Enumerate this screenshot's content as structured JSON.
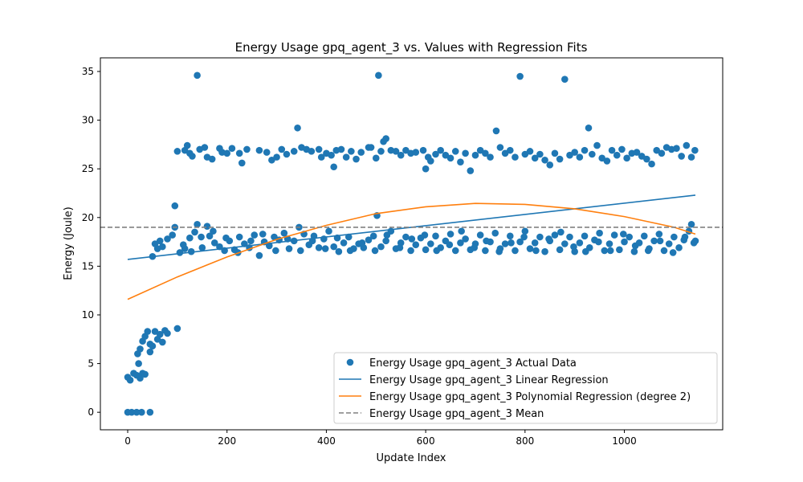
{
  "chart_data": {
    "type": "scatter",
    "title": "Energy Usage gpq_agent_3 vs. Values with Regression Fits",
    "xlabel": "Update Index",
    "ylabel": "Energy (Joule)",
    "xlim": [
      -55,
      1198
    ],
    "ylim": [
      -1.8,
      36.4
    ],
    "xticks": [
      0,
      200,
      400,
      600,
      800,
      1000
    ],
    "yticks": [
      0,
      5,
      10,
      15,
      20,
      25,
      30,
      35
    ],
    "grid": false,
    "legend_position": "lower right",
    "series": [
      {
        "name": "Energy Usage gpq_agent_3 Actual Data",
        "kind": "scatter",
        "color": "#1f77b4",
        "points": [
          [
            0,
            0
          ],
          [
            8,
            0
          ],
          [
            18,
            0
          ],
          [
            28,
            0
          ],
          [
            45,
            0
          ],
          [
            0,
            3.6
          ],
          [
            5,
            3.3
          ],
          [
            12,
            4.0
          ],
          [
            18,
            3.8
          ],
          [
            25,
            3.5
          ],
          [
            30,
            4.0
          ],
          [
            35,
            3.9
          ],
          [
            20,
            6.0
          ],
          [
            25,
            6.5
          ],
          [
            30,
            7.3
          ],
          [
            35,
            7.8
          ],
          [
            40,
            8.3
          ],
          [
            45,
            7.0
          ],
          [
            50,
            6.8
          ],
          [
            55,
            8.3
          ],
          [
            60,
            7.5
          ],
          [
            65,
            8.0
          ],
          [
            70,
            7.2
          ],
          [
            75,
            8.4
          ],
          [
            80,
            8.1
          ],
          [
            100,
            8.6
          ],
          [
            22,
            5.0
          ],
          [
            45,
            6.2
          ],
          [
            95,
            21.2
          ],
          [
            50,
            16.0
          ],
          [
            55,
            17.3
          ],
          [
            60,
            16.8
          ],
          [
            65,
            17.6
          ],
          [
            70,
            17.0
          ],
          [
            80,
            17.8
          ],
          [
            90,
            18.2
          ],
          [
            95,
            19.0
          ],
          [
            100,
            26.8
          ],
          [
            115,
            26.9
          ],
          [
            120,
            27.4
          ],
          [
            125,
            26.6
          ],
          [
            130,
            26.3
          ],
          [
            140,
            34.6
          ],
          [
            145,
            27.0
          ],
          [
            155,
            27.2
          ],
          [
            160,
            26.2
          ],
          [
            170,
            26.0
          ],
          [
            185,
            27.1
          ],
          [
            190,
            26.7
          ],
          [
            200,
            26.6
          ],
          [
            210,
            27.1
          ],
          [
            225,
            26.6
          ],
          [
            230,
            25.6
          ],
          [
            240,
            27.0
          ],
          [
            265,
            26.9
          ],
          [
            280,
            26.7
          ],
          [
            290,
            25.9
          ],
          [
            300,
            26.2
          ],
          [
            310,
            27.0
          ],
          [
            320,
            26.5
          ],
          [
            335,
            26.8
          ],
          [
            342,
            29.2
          ],
          [
            350,
            27.2
          ],
          [
            360,
            27.0
          ],
          [
            370,
            26.8
          ],
          [
            385,
            27.0
          ],
          [
            390,
            26.2
          ],
          [
            400,
            26.6
          ],
          [
            410,
            26.4
          ],
          [
            415,
            25.2
          ],
          [
            420,
            26.9
          ],
          [
            430,
            27.0
          ],
          [
            440,
            26.2
          ],
          [
            450,
            26.8
          ],
          [
            460,
            26.0
          ],
          [
            470,
            26.7
          ],
          [
            485,
            27.2
          ],
          [
            490,
            27.2
          ],
          [
            500,
            26.1
          ],
          [
            505,
            34.6
          ],
          [
            510,
            26.8
          ],
          [
            515,
            27.8
          ],
          [
            520,
            28.1
          ],
          [
            530,
            26.9
          ],
          [
            540,
            26.8
          ],
          [
            550,
            26.4
          ],
          [
            560,
            26.9
          ],
          [
            570,
            26.6
          ],
          [
            580,
            26.7
          ],
          [
            595,
            26.9
          ],
          [
            600,
            25.0
          ],
          [
            605,
            26.2
          ],
          [
            610,
            25.8
          ],
          [
            620,
            26.5
          ],
          [
            630,
            26.9
          ],
          [
            640,
            26.4
          ],
          [
            650,
            26.1
          ],
          [
            660,
            26.8
          ],
          [
            670,
            25.7
          ],
          [
            680,
            26.6
          ],
          [
            690,
            24.8
          ],
          [
            700,
            26.4
          ],
          [
            710,
            26.9
          ],
          [
            720,
            26.6
          ],
          [
            730,
            26.2
          ],
          [
            742,
            28.9
          ],
          [
            750,
            27.2
          ],
          [
            760,
            26.6
          ],
          [
            770,
            26.9
          ],
          [
            780,
            26.2
          ],
          [
            790,
            34.5
          ],
          [
            800,
            26.5
          ],
          [
            810,
            26.8
          ],
          [
            820,
            26.1
          ],
          [
            830,
            26.5
          ],
          [
            840,
            25.9
          ],
          [
            850,
            25.4
          ],
          [
            860,
            26.6
          ],
          [
            870,
            26.0
          ],
          [
            880,
            34.2
          ],
          [
            890,
            26.4
          ],
          [
            900,
            26.7
          ],
          [
            910,
            26.2
          ],
          [
            920,
            26.9
          ],
          [
            928,
            29.2
          ],
          [
            935,
            26.5
          ],
          [
            945,
            27.4
          ],
          [
            955,
            26.1
          ],
          [
            965,
            25.8
          ],
          [
            975,
            26.9
          ],
          [
            985,
            26.4
          ],
          [
            995,
            27.0
          ],
          [
            1005,
            26.1
          ],
          [
            1015,
            26.6
          ],
          [
            1025,
            26.7
          ],
          [
            1035,
            26.3
          ],
          [
            1045,
            26.0
          ],
          [
            1055,
            25.5
          ],
          [
            1065,
            26.9
          ],
          [
            1075,
            26.6
          ],
          [
            1085,
            27.2
          ],
          [
            1095,
            27.0
          ],
          [
            1105,
            27.1
          ],
          [
            1115,
            26.3
          ],
          [
            1125,
            27.4
          ],
          [
            1135,
            26.2
          ],
          [
            1142,
            26.9
          ],
          [
            105,
            16.4
          ],
          [
            115,
            16.8
          ],
          [
            125,
            17.9
          ],
          [
            135,
            18.5
          ],
          [
            140,
            19.3
          ],
          [
            150,
            16.9
          ],
          [
            160,
            19.1
          ],
          [
            165,
            18.1
          ],
          [
            175,
            17.4
          ],
          [
            185,
            17.0
          ],
          [
            195,
            16.6
          ],
          [
            205,
            17.6
          ],
          [
            215,
            16.7
          ],
          [
            225,
            18.0
          ],
          [
            235,
            17.3
          ],
          [
            245,
            16.9
          ],
          [
            255,
            18.2
          ],
          [
            265,
            16.1
          ],
          [
            275,
            17.5
          ],
          [
            285,
            17.1
          ],
          [
            295,
            18.0
          ],
          [
            305,
            17.7
          ],
          [
            315,
            18.4
          ],
          [
            325,
            16.8
          ],
          [
            335,
            17.6
          ],
          [
            345,
            19.0
          ],
          [
            355,
            18.3
          ],
          [
            365,
            17.2
          ],
          [
            375,
            18.1
          ],
          [
            385,
            16.9
          ],
          [
            395,
            17.8
          ],
          [
            405,
            18.6
          ],
          [
            415,
            17.0
          ],
          [
            425,
            16.5
          ],
          [
            435,
            17.4
          ],
          [
            445,
            18.0
          ],
          [
            455,
            16.8
          ],
          [
            465,
            17.3
          ],
          [
            475,
            16.9
          ],
          [
            485,
            17.7
          ],
          [
            495,
            18.1
          ],
          [
            502,
            20.2
          ],
          [
            510,
            17.0
          ],
          [
            520,
            17.6
          ],
          [
            530,
            18.6
          ],
          [
            540,
            16.8
          ],
          [
            550,
            17.4
          ],
          [
            560,
            18.0
          ],
          [
            570,
            16.6
          ],
          [
            580,
            17.2
          ],
          [
            590,
            17.9
          ],
          [
            600,
            16.7
          ],
          [
            610,
            17.3
          ],
          [
            620,
            18.1
          ],
          [
            630,
            16.9
          ],
          [
            640,
            17.6
          ],
          [
            650,
            18.3
          ],
          [
            660,
            16.6
          ],
          [
            670,
            17.4
          ],
          [
            680,
            17.8
          ],
          [
            690,
            16.7
          ],
          [
            700,
            17.3
          ],
          [
            710,
            18.2
          ],
          [
            720,
            16.6
          ],
          [
            730,
            17.5
          ],
          [
            740,
            18.4
          ],
          [
            750,
            16.8
          ],
          [
            760,
            17.3
          ],
          [
            770,
            18.1
          ],
          [
            780,
            16.6
          ],
          [
            790,
            17.5
          ],
          [
            800,
            18.6
          ],
          [
            810,
            16.8
          ],
          [
            820,
            17.4
          ],
          [
            830,
            18.0
          ],
          [
            840,
            16.5
          ],
          [
            850,
            17.6
          ],
          [
            860,
            18.2
          ],
          [
            870,
            16.7
          ],
          [
            880,
            17.3
          ],
          [
            890,
            18.0
          ],
          [
            900,
            16.5
          ],
          [
            910,
            17.4
          ],
          [
            920,
            18.1
          ],
          [
            930,
            16.9
          ],
          [
            940,
            17.7
          ],
          [
            950,
            18.4
          ],
          [
            960,
            16.6
          ],
          [
            970,
            17.3
          ],
          [
            980,
            18.2
          ],
          [
            990,
            16.7
          ],
          [
            1000,
            17.5
          ],
          [
            1010,
            18.0
          ],
          [
            1020,
            16.5
          ],
          [
            1030,
            17.4
          ],
          [
            1040,
            18.1
          ],
          [
            1050,
            16.8
          ],
          [
            1060,
            17.6
          ],
          [
            1070,
            18.3
          ],
          [
            1080,
            16.6
          ],
          [
            1090,
            17.3
          ],
          [
            1100,
            18.0
          ],
          [
            1110,
            16.9
          ],
          [
            1120,
            17.7
          ],
          [
            1130,
            18.6
          ],
          [
            1135,
            19.3
          ],
          [
            1140,
            17.4
          ],
          [
            1143,
            17.6
          ],
          [
            112,
            17.2
          ],
          [
            128,
            16.5
          ],
          [
            148,
            18.0
          ],
          [
            172,
            18.6
          ],
          [
            198,
            17.9
          ],
          [
            222,
            16.4
          ],
          [
            248,
            17.6
          ],
          [
            272,
            18.3
          ],
          [
            298,
            16.6
          ],
          [
            322,
            17.8
          ],
          [
            348,
            16.6
          ],
          [
            372,
            17.6
          ],
          [
            398,
            16.8
          ],
          [
            422,
            17.9
          ],
          [
            448,
            16.6
          ],
          [
            472,
            17.4
          ],
          [
            498,
            16.6
          ],
          [
            522,
            18.2
          ],
          [
            548,
            16.9
          ],
          [
            572,
            17.8
          ],
          [
            598,
            18.2
          ],
          [
            622,
            16.6
          ],
          [
            648,
            17.2
          ],
          [
            672,
            18.6
          ],
          [
            698,
            16.9
          ],
          [
            722,
            17.6
          ],
          [
            748,
            16.5
          ],
          [
            772,
            17.4
          ],
          [
            798,
            18.0
          ],
          [
            822,
            16.6
          ],
          [
            848,
            17.8
          ],
          [
            872,
            18.5
          ],
          [
            898,
            17.0
          ],
          [
            922,
            16.5
          ],
          [
            948,
            17.5
          ],
          [
            972,
            16.6
          ],
          [
            998,
            18.3
          ],
          [
            1022,
            17.1
          ],
          [
            1048,
            16.6
          ],
          [
            1072,
            17.6
          ],
          [
            1098,
            16.4
          ],
          [
            1122,
            18.0
          ]
        ]
      },
      {
        "name": "Energy Usage gpq_agent_3 Linear Regression",
        "kind": "line",
        "color": "#1f77b4",
        "x": [
          0,
          1143
        ],
        "y": [
          15.7,
          22.3
        ]
      },
      {
        "name": "Energy Usage gpq_agent_3 Polynomial Regression (degree 2)",
        "kind": "line",
        "color": "#ff7f0e",
        "x": [
          0,
          100,
          200,
          300,
          400,
          500,
          600,
          700,
          800,
          900,
          1000,
          1100,
          1143
        ],
        "y": [
          11.6,
          13.9,
          15.95,
          17.75,
          19.2,
          20.4,
          21.1,
          21.45,
          21.35,
          20.9,
          20.1,
          19.0,
          18.3
        ]
      },
      {
        "name": "Energy Usage gpq_agent_3 Mean",
        "kind": "hline",
        "color": "#808080",
        "dash": "dashed",
        "y": 19.0
      }
    ]
  }
}
